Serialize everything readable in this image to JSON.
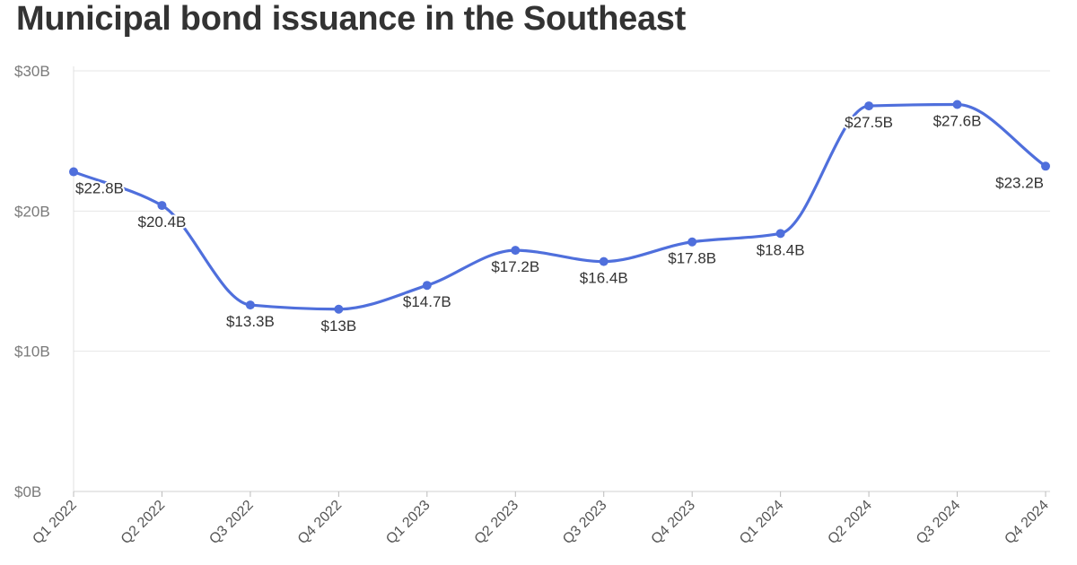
{
  "chart_data": {
    "type": "line",
    "title": "Municipal bond issuance in the Southeast",
    "xlabel": "",
    "ylabel": "",
    "categories": [
      "Q1 2022",
      "Q2 2022",
      "Q3 2022",
      "Q4 2022",
      "Q1 2023",
      "Q2 2023",
      "Q3 2023",
      "Q4 2023",
      "Q1 2024",
      "Q2 2024",
      "Q3 2024",
      "Q4 2024"
    ],
    "series": [
      {
        "values": [
          22.8,
          20.4,
          13.3,
          13.0,
          14.7,
          17.2,
          16.4,
          17.8,
          18.4,
          27.5,
          27.6,
          23.2
        ],
        "labels": [
          "$22.8B",
          "$20.4B",
          "$13.3B",
          "$13B",
          "$14.7B",
          "$17.2B",
          "$16.4B",
          "$17.8B",
          "$18.4B",
          "$27.5B",
          "$27.6B",
          "$23.2B"
        ]
      }
    ],
    "ylim": [
      0,
      30
    ],
    "yticks": [
      0,
      10,
      20,
      30
    ],
    "ytick_labels": [
      "$0B",
      "$10B",
      "$20B",
      "$30B"
    ],
    "grid": true,
    "line_color": "#4f6fdc"
  }
}
